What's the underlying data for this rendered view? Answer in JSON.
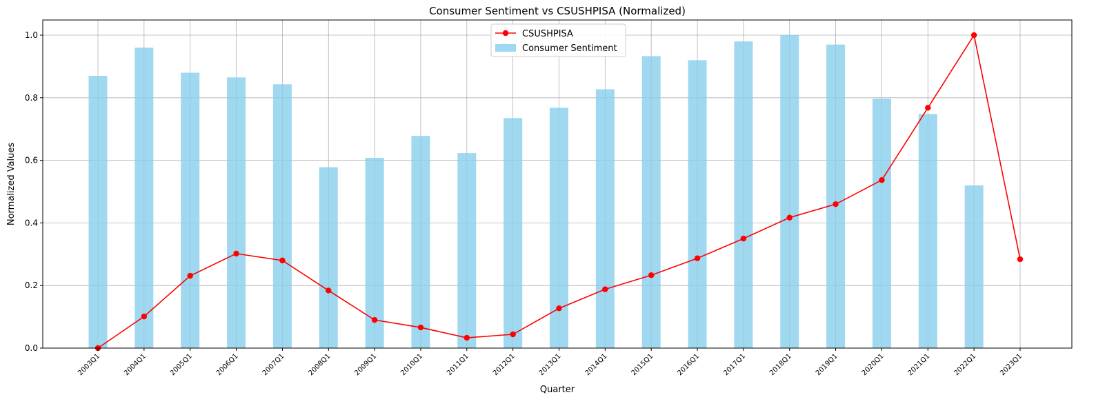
{
  "chart_data": {
    "type": "bar",
    "title": "Consumer Sentiment vs CSUSHPISA (Normalized)",
    "xlabel": "Quarter",
    "ylabel": "Normalized Values",
    "ylim": [
      0,
      1.05
    ],
    "yticks": [
      "0.0",
      "0.2",
      "0.4",
      "0.6",
      "0.8",
      "1.0"
    ],
    "ytick_values": [
      0,
      0.2,
      0.4,
      0.6,
      0.8,
      1.0
    ],
    "grid": true,
    "legend_position": "top-center",
    "categories": [
      "2003Q1",
      "2004Q1",
      "2005Q1",
      "2006Q1",
      "2007Q1",
      "2008Q1",
      "2009Q1",
      "2010Q1",
      "2011Q1",
      "2012Q1",
      "2013Q1",
      "2014Q1",
      "2015Q1",
      "2016Q1",
      "2017Q1",
      "2018Q1",
      "2019Q1",
      "2020Q1",
      "2021Q1",
      "2022Q1",
      "2023Q1"
    ],
    "series": [
      {
        "name": "Consumer Sentiment",
        "kind": "bar",
        "color": "#87ceeb",
        "values": [
          0.87,
          0.96,
          0.88,
          0.865,
          0.843,
          0.578,
          0.608,
          0.678,
          0.623,
          0.735,
          0.768,
          0.827,
          0.933,
          0.92,
          0.98,
          1.0,
          0.97,
          0.797,
          0.748,
          0.52,
          null
        ]
      },
      {
        "name": "CSUSHPISA",
        "kind": "line",
        "color": "#ff0000",
        "values": [
          0.0,
          0.101,
          0.231,
          0.302,
          0.28,
          0.184,
          0.09,
          0.066,
          0.033,
          0.044,
          0.127,
          0.188,
          0.233,
          0.287,
          0.35,
          0.417,
          0.46,
          0.537,
          0.768,
          1.0,
          0.284
        ]
      }
    ]
  }
}
